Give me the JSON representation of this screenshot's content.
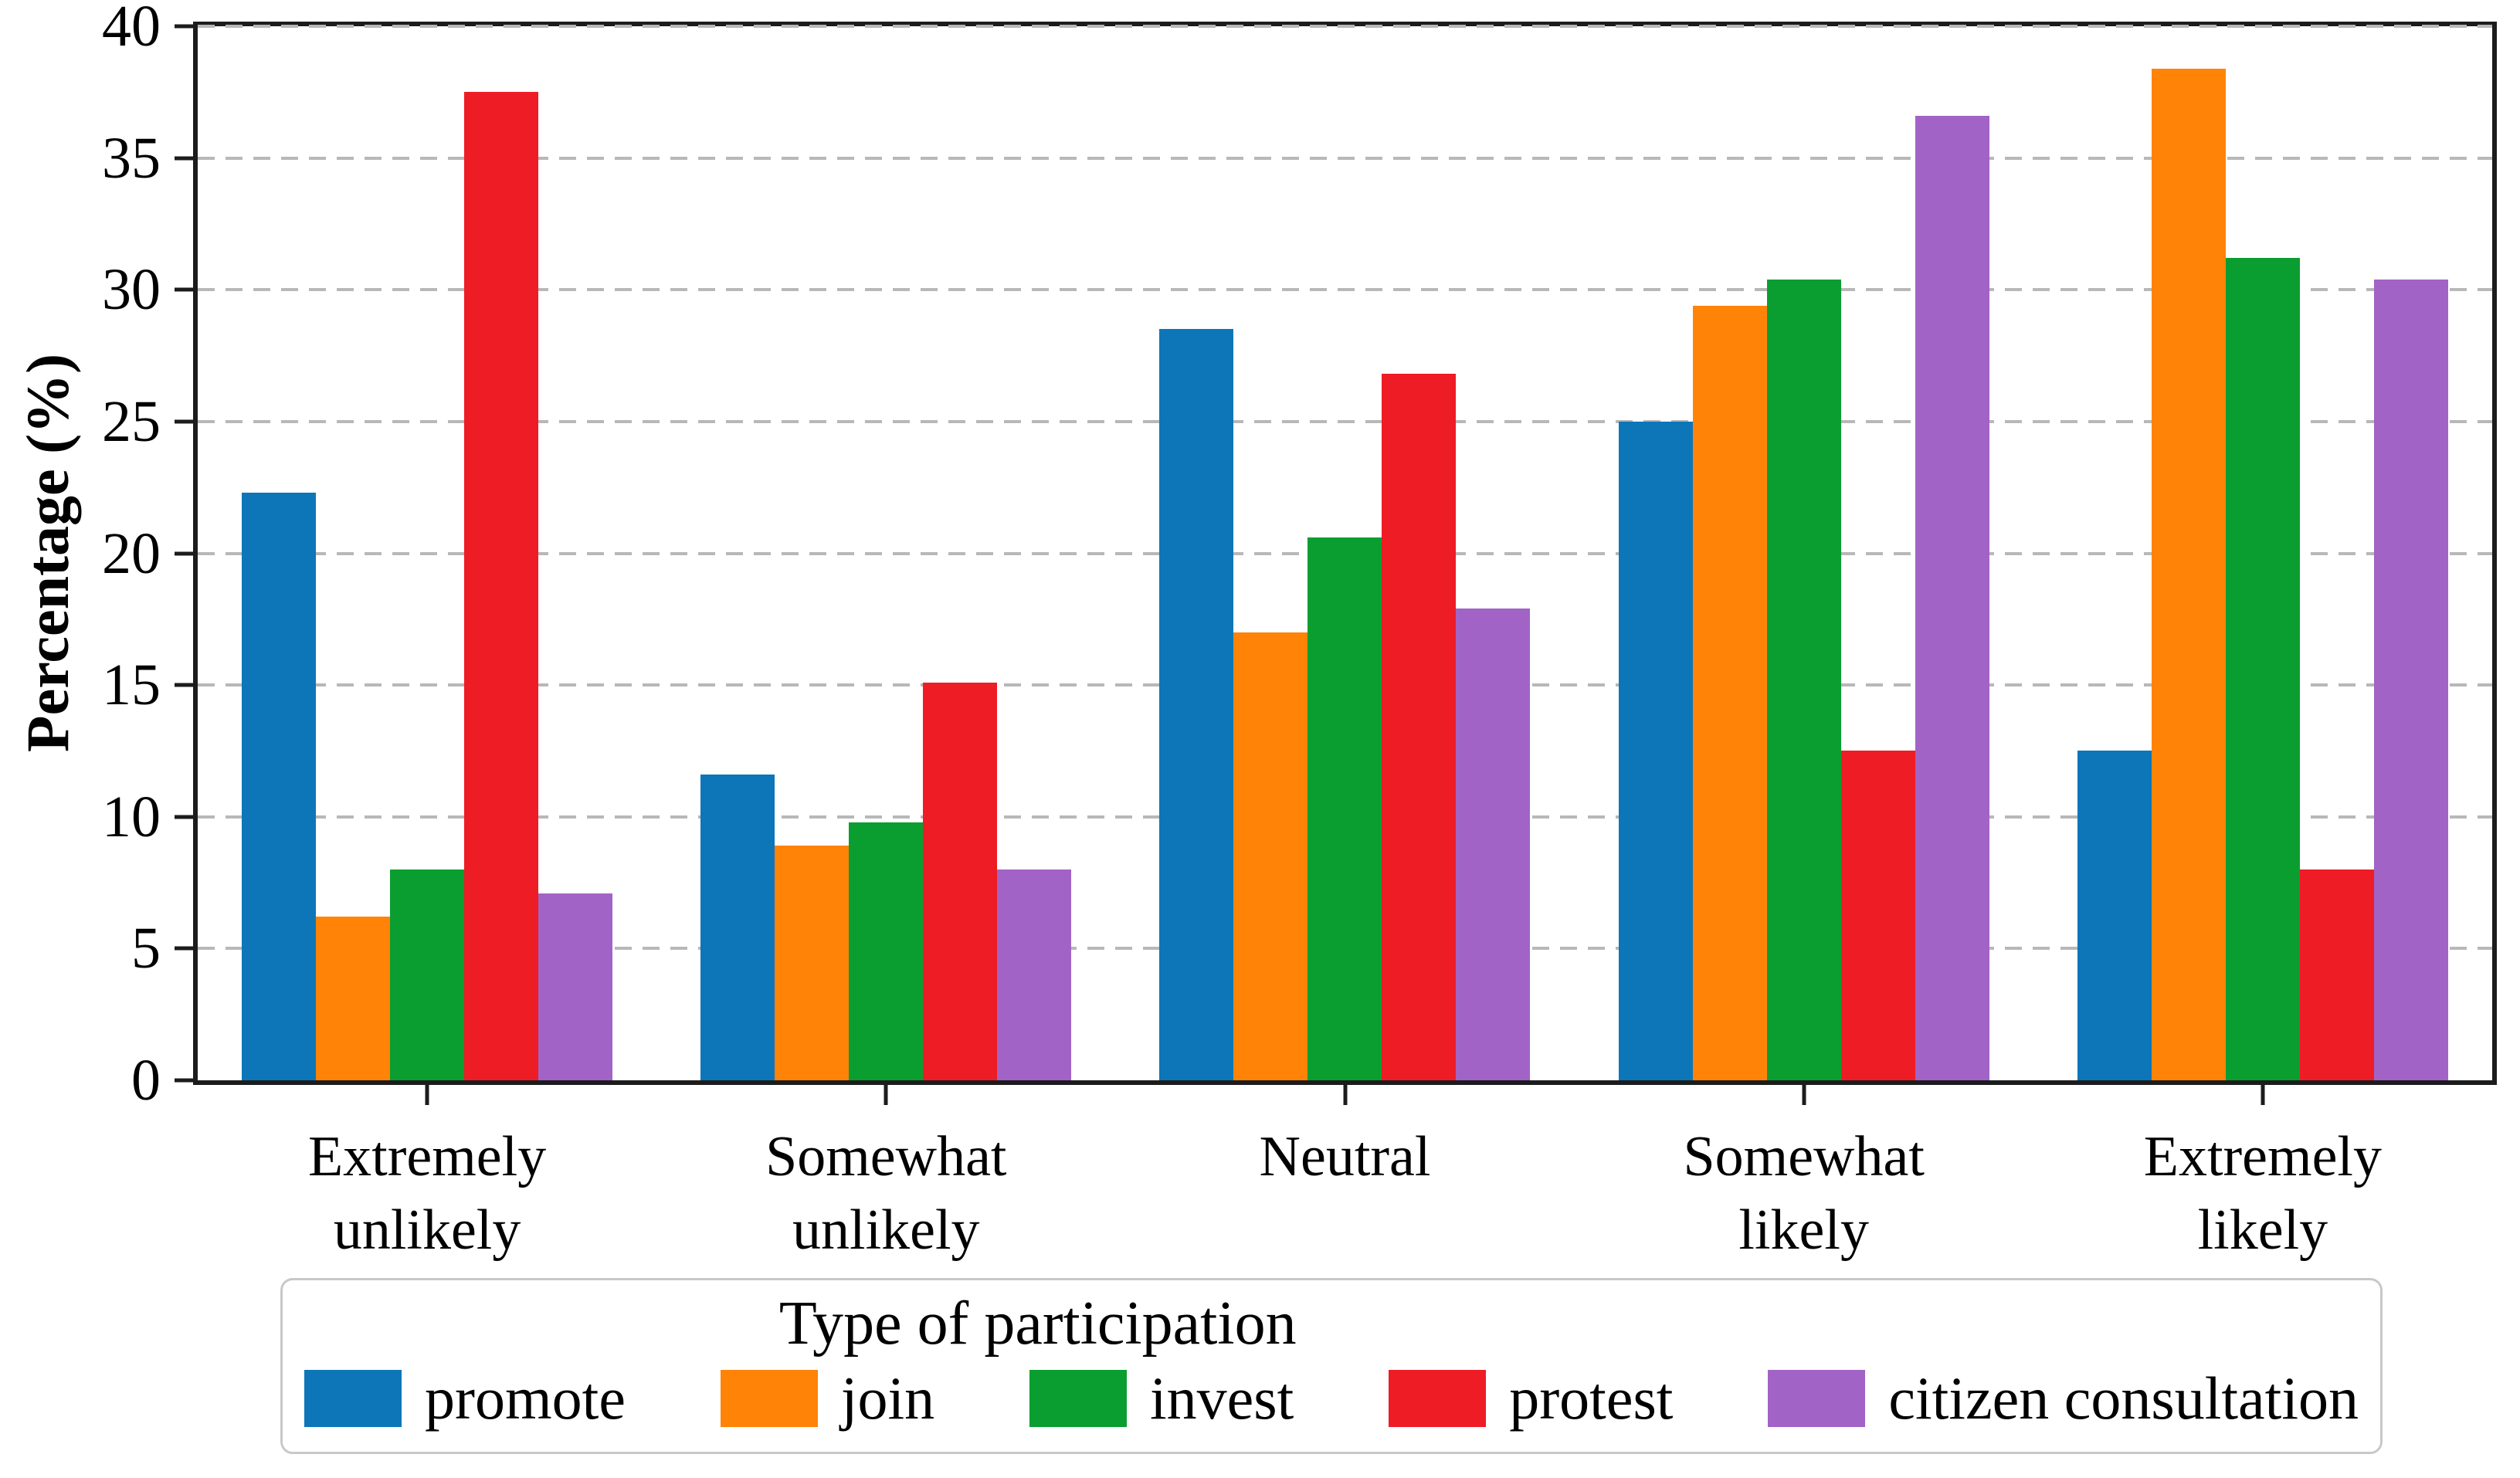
{
  "figure": {
    "ylabel": "Percentage (%)",
    "legend_title": "Type of participation",
    "spine_color": "#1c1c1c",
    "grid_color": "#b8b8b8",
    "background": "#ffffff"
  },
  "chart_data": {
    "type": "bar",
    "title": "",
    "xlabel": "",
    "ylabel": "Percentage (%)",
    "categories": [
      "Extremely unlikely",
      "Somewhat unlikely",
      "Neutral",
      "Somewhat likely",
      "Extremely likely"
    ],
    "series": [
      {
        "name": "promote",
        "color": "#0d76b8",
        "values": [
          22.3,
          11.6,
          28.5,
          25.0,
          12.5
        ]
      },
      {
        "name": "join",
        "color": "#ff8307",
        "values": [
          6.2,
          8.9,
          17.0,
          29.4,
          38.4
        ]
      },
      {
        "name": "invest",
        "color": "#0a9e31",
        "values": [
          8.0,
          9.8,
          20.6,
          30.4,
          31.2
        ]
      },
      {
        "name": "protest",
        "color": "#ee1c25",
        "values": [
          37.5,
          15.1,
          26.8,
          12.5,
          8.0
        ]
      },
      {
        "name": "citizen consultation",
        "color": "#a263c6",
        "values": [
          7.1,
          8.0,
          17.9,
          36.6,
          30.4
        ]
      }
    ],
    "ylim": [
      0,
      40
    ],
    "yticks": [
      0,
      5,
      10,
      15,
      20,
      25,
      30,
      35,
      40
    ],
    "grid": "horizontal dashed",
    "legend_title": "Type of participation",
    "legend_position": "bottom"
  }
}
